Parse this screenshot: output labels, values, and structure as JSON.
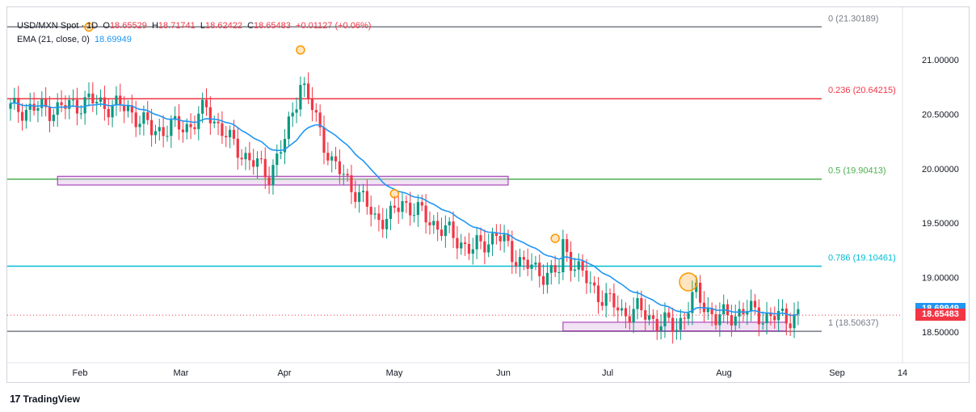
{
  "legend": {
    "symbol": "USD/MXN Spot · 1D",
    "open_label": "O",
    "open": "18.65529",
    "high_label": "H",
    "high": "18.71741",
    "low_label": "L",
    "low": "18.62422",
    "close_label": "C",
    "close": "18.65483",
    "change": "+0.01127 (+0.06%)",
    "ema_label": "EMA (21, close, 0)",
    "ema_value": "18.69949"
  },
  "footer": {
    "brand": "TradingView",
    "logo": "17"
  },
  "chart_data": {
    "type": "candlestick",
    "ylim": [
      18.37,
      21.42
    ],
    "y_ticks": [
      "21.00000",
      "20.50000",
      "20.00000",
      "19.50000",
      "19.00000",
      "18.50000"
    ],
    "y_tick_values": [
      21.0,
      20.5,
      20.0,
      19.5,
      19.0,
      18.5
    ],
    "x_tick_labels": [
      "Feb",
      "Mar",
      "Apr",
      "May",
      "Jun",
      "Jul",
      "Aug",
      "Sep",
      "14"
    ],
    "fib_levels": [
      {
        "label": "0 (21.30189)",
        "value": 21.30189,
        "color": "#787b86"
      },
      {
        "label": "0.236 (20.64215)",
        "value": 20.64215,
        "color": "#f23645"
      },
      {
        "label": "0.5 (19.90413)",
        "value": 19.90413,
        "color": "#4caf50"
      },
      {
        "label": "0.786 (19.10461)",
        "value": 19.10461,
        "color": "#00bcd4"
      },
      {
        "label": "1 (18.50637)",
        "value": 18.50637,
        "color": "#787b86"
      }
    ],
    "ema_tag": "18.69949",
    "last_price_tag": "18.65483",
    "last_price": 18.65483,
    "support_zones": [
      {
        "from_index": 12,
        "to_index": 127,
        "low": 19.85,
        "high": 19.93
      },
      {
        "from_index": 141,
        "to_index": 198,
        "low": 18.51,
        "high": 18.59
      }
    ],
    "highlight_points": [
      {
        "index": 20,
        "price": 21.3
      },
      {
        "index": 74,
        "price": 21.09
      },
      {
        "index": 98,
        "price": 19.77
      },
      {
        "index": 139,
        "price": 19.36
      },
      {
        "index": 173,
        "price": 18.96
      }
    ],
    "colors": {
      "up": "#089981",
      "down": "#f23645",
      "ema": "#2196f3"
    }
  }
}
